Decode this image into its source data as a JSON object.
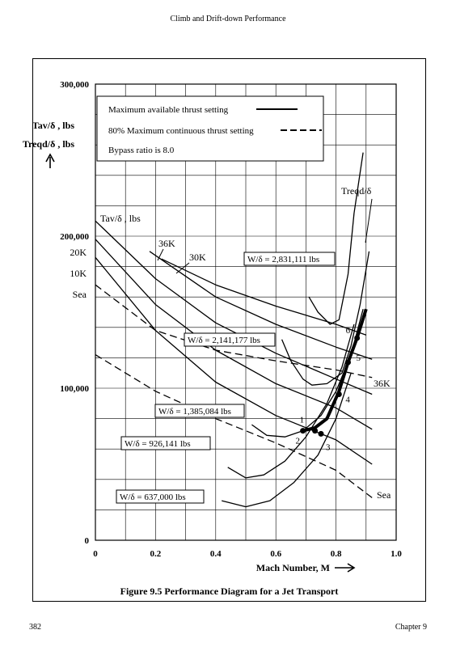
{
  "header": {
    "running_title": "Climb and Drift-down Performance"
  },
  "footer": {
    "page_number": "382",
    "chapter": "Chapter 9"
  },
  "figure": {
    "caption": "Figure 9.5 Performance Diagram for a Jet Transport"
  },
  "legend": {
    "items": [
      {
        "text": "Maximum available thrust setting",
        "style": "solid"
      },
      {
        "text": "80% Maximum continuous thrust setting",
        "style": "dashed"
      },
      {
        "text": "Bypass ratio is 8.0",
        "style": "none"
      }
    ]
  },
  "chart_data": {
    "type": "line",
    "title": "",
    "xlabel": "Mach Number, M",
    "ylabel_lines": [
      "Tav/δ , lbs",
      "Treqd/δ , lbs"
    ],
    "xlim": [
      0,
      1.0
    ],
    "ylim": [
      0,
      300000
    ],
    "x_ticks": [
      "0",
      "0.2",
      "0.4",
      "0.6",
      "0.8",
      "1.0"
    ],
    "y_ticks": [
      "0",
      "100,000",
      "200,000",
      "300,000"
    ],
    "grid": true,
    "labels": {
      "tav": "Tav/δ , lbs",
      "treqd": "Treqd/δ",
      "left_altitudes": [
        "20K",
        "10K",
        "Sea"
      ],
      "k36": "36K",
      "k30": "30K",
      "k36_right": "36K",
      "sea_right": "Sea"
    },
    "weight_labels": [
      "W/δ = 2,831,111 lbs",
      "W/δ = 2,141,177 lbs",
      "W/δ = 1,385,084 lbs",
      "W/δ = 926,141 lbs",
      "W/δ = 637,000 lbs"
    ],
    "point_labels": [
      "1",
      "2",
      "3",
      "4",
      "5",
      "6"
    ],
    "series": [
      {
        "label": "36K",
        "style": "solid",
        "x": [
          0.22,
          0.4,
          0.6,
          0.8,
          0.9
        ],
        "y": [
          185000,
          168000,
          154000,
          142000,
          135000
        ]
      },
      {
        "label": "30K",
        "style": "solid",
        "x": [
          0.18,
          0.4,
          0.6,
          0.8,
          0.92
        ],
        "y": [
          190000,
          160000,
          142000,
          127000,
          119000
        ]
      },
      {
        "label": "20K",
        "style": "solid",
        "x": [
          0,
          0.2,
          0.4,
          0.6,
          0.8,
          0.92
        ],
        "y": [
          210000,
          172000,
          143000,
          123000,
          106000,
          96000
        ]
      },
      {
        "label": "10K",
        "style": "solid",
        "x": [
          0,
          0.2,
          0.4,
          0.6,
          0.8,
          0.92
        ],
        "y": [
          198000,
          155000,
          125000,
          103000,
          87000,
          73000
        ]
      },
      {
        "label": "Sea",
        "style": "solid",
        "x": [
          0,
          0.2,
          0.4,
          0.6,
          0.8,
          0.92
        ],
        "y": [
          186000,
          138000,
          104000,
          82000,
          66000,
          50000
        ]
      },
      {
        "label": "36K (80%)",
        "style": "dashed",
        "x": [
          0,
          0.2,
          0.4,
          0.6,
          0.8,
          0.92
        ],
        "y": [
          168000,
          138000,
          125000,
          118000,
          112000,
          107000
        ]
      },
      {
        "label": "Sea (80%)",
        "style": "dashed",
        "x": [
          0,
          0.2,
          0.4,
          0.6,
          0.8,
          0.92
        ],
        "y": [
          122000,
          98000,
          80000,
          64000,
          46000,
          28000
        ]
      },
      {
        "label": "W/δ = 2,831,111 lbs",
        "style": "solid",
        "x": [
          0.71,
          0.74,
          0.78,
          0.81,
          0.84,
          0.86,
          0.89
        ],
        "y": [
          160000,
          150000,
          142000,
          145000,
          175000,
          215000,
          255000
        ]
      },
      {
        "label": "W/δ = 2,141,177 lbs",
        "style": "solid",
        "x": [
          0.62,
          0.65,
          0.69,
          0.72,
          0.77,
          0.82,
          0.85,
          0.88,
          0.91
        ],
        "y": [
          132000,
          118000,
          106000,
          102000,
          103000,
          110000,
          128000,
          155000,
          190000
        ]
      },
      {
        "label": "W/δ = 1,385,084 lbs",
        "style": "solid",
        "x": [
          0.52,
          0.57,
          0.63,
          0.69,
          0.75,
          0.8,
          0.85,
          0.89
        ],
        "y": [
          76000,
          69000,
          68000,
          72000,
          82000,
          98000,
          122000,
          152000
        ]
      },
      {
        "label": "W/δ = 926,141 lbs",
        "style": "solid",
        "x": [
          0.44,
          0.5,
          0.56,
          0.63,
          0.7,
          0.77,
          0.82,
          0.86
        ],
        "y": [
          48000,
          41000,
          43000,
          52000,
          68000,
          90000,
          114000,
          142000
        ]
      },
      {
        "label": "W/δ = 637,000 lbs",
        "style": "solid",
        "x": [
          0.42,
          0.5,
          0.58,
          0.66,
          0.74,
          0.8,
          0.85
        ],
        "y": [
          26000,
          22000,
          26000,
          38000,
          56000,
          80000,
          110000
        ]
      },
      {
        "label": "optimum path",
        "style": "bold",
        "x": [
          0.69,
          0.73,
          0.77,
          0.81,
          0.84,
          0.87,
          0.9
        ],
        "y": [
          72000,
          74000,
          80000,
          98000,
          117000,
          133000,
          152000
        ]
      }
    ],
    "points": [
      {
        "label": "1",
        "x": 0.69,
        "y": 72000
      },
      {
        "label": "2",
        "x": 0.73,
        "y": 72000
      },
      {
        "label": "3",
        "x": 0.75,
        "y": 70000
      },
      {
        "label": "4",
        "x": 0.81,
        "y": 96000
      },
      {
        "label": "5",
        "x": 0.84,
        "y": 117000
      },
      {
        "label": "6",
        "x": 0.87,
        "y": 133000
      }
    ]
  }
}
